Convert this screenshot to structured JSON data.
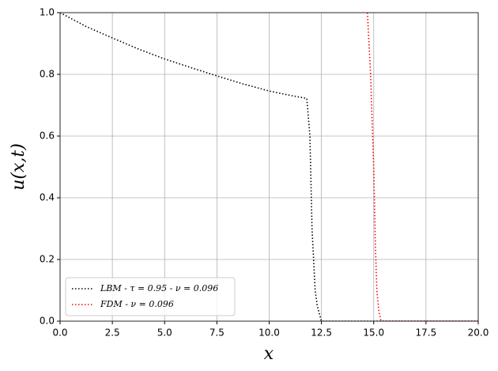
{
  "chart_data": {
    "type": "line",
    "xlabel": "x",
    "ylabel": "u(x,t)",
    "xlim": [
      0,
      20
    ],
    "ylim": [
      0,
      1
    ],
    "xticks": [
      {
        "value": 0,
        "label": "0.0"
      },
      {
        "value": 2.5,
        "label": "2.5"
      },
      {
        "value": 5,
        "label": "5.0"
      },
      {
        "value": 7.5,
        "label": "7.5"
      },
      {
        "value": 10,
        "label": "10.0"
      },
      {
        "value": 12.5,
        "label": "12.5"
      },
      {
        "value": 15,
        "label": "15.0"
      },
      {
        "value": 17.5,
        "label": "17.5"
      },
      {
        "value": 20,
        "label": "20.0"
      }
    ],
    "yticks": [
      {
        "value": 0,
        "label": "0.0"
      },
      {
        "value": 0.2,
        "label": "0.2"
      },
      {
        "value": 0.4,
        "label": "0.4"
      },
      {
        "value": 0.6,
        "label": "0.6"
      },
      {
        "value": 0.8,
        "label": "0.8"
      },
      {
        "value": 1,
        "label": "1.0"
      }
    ],
    "grid": true,
    "legend": "lower left",
    "series": [
      {
        "name": "LBM - τ = 0.95 - ν = 0.096",
        "color": "#000000",
        "x": [
          0,
          1.25,
          2.5,
          3.75,
          5,
          6.25,
          7.5,
          8.75,
          10,
          11,
          11.8,
          11.95,
          12.05,
          12.2,
          12.3,
          12.5,
          15,
          17.5,
          20
        ],
        "values": [
          1.0,
          0.955,
          0.918,
          0.882,
          0.85,
          0.822,
          0.795,
          0.769,
          0.746,
          0.732,
          0.722,
          0.6,
          0.3,
          0.1,
          0.05,
          0,
          0,
          0,
          0
        ]
      },
      {
        "name": "FDM - ν = 0.096",
        "color": "#ff0000",
        "x": [
          14.7,
          14.85,
          15.0,
          15.08,
          15.15,
          15.25,
          15.35,
          17.5,
          20
        ],
        "values": [
          1.0,
          0.8,
          0.5,
          0.25,
          0.1,
          0.03,
          0,
          0,
          0
        ]
      }
    ]
  }
}
